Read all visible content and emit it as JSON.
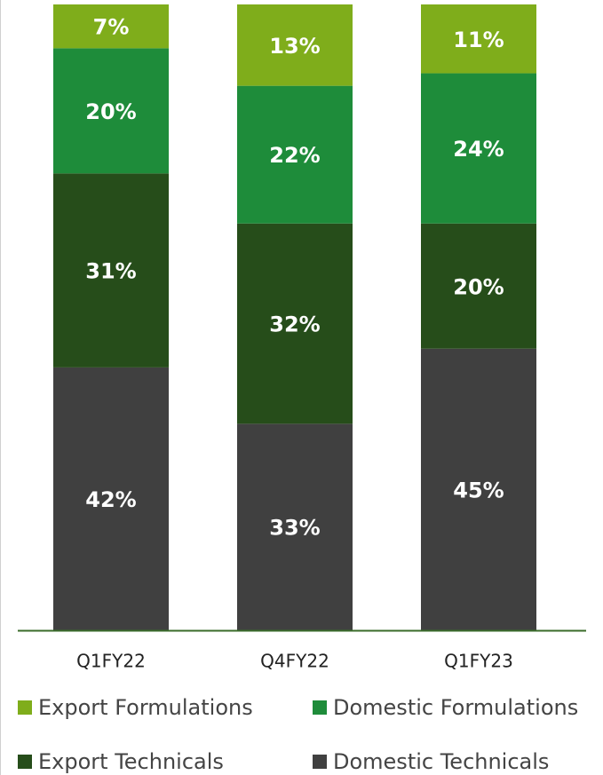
{
  "chart_data": {
    "type": "stacked_bar",
    "categories": [
      "Q1FY22",
      "Q4FY22",
      "Q1FY23"
    ],
    "series": [
      {
        "name": "Domestic Technicals",
        "color": "#404040",
        "values": [
          42,
          33,
          45
        ],
        "value_labels": [
          "42%",
          "33%",
          "45%"
        ]
      },
      {
        "name": "Export Technicals",
        "color": "#264d1a",
        "values": [
          31,
          32,
          20
        ],
        "value_labels": [
          "31%",
          "32%",
          "20%"
        ]
      },
      {
        "name": "Domestic Formulations",
        "color": "#1e8c3a",
        "values": [
          20,
          22,
          24
        ],
        "value_labels": [
          "20%",
          "22%",
          "24%"
        ]
      },
      {
        "name": "Export Formulations",
        "color": "#7fad1b",
        "values": [
          7,
          13,
          11
        ],
        "value_labels": [
          "7%",
          "13%",
          "11%"
        ]
      }
    ]
  }
}
